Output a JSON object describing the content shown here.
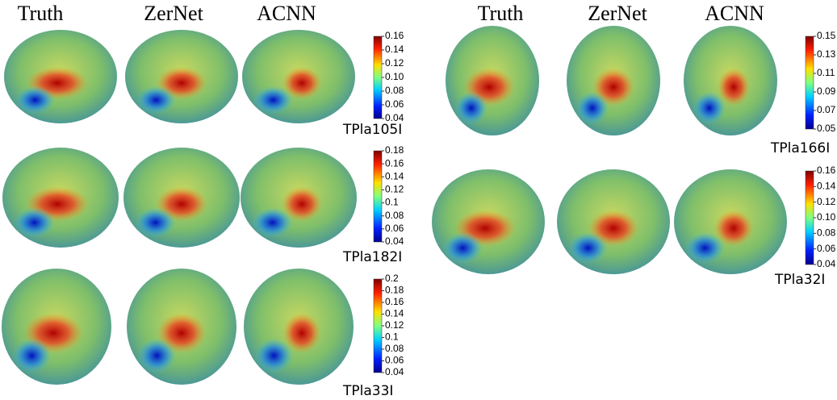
{
  "headers": {
    "left": [
      "Truth",
      "ZerNet",
      "ACNN"
    ],
    "right": [
      "Truth",
      "ZerNet",
      "ACNN"
    ]
  },
  "panels": [
    {
      "label": "TPla105I",
      "ticks": [
        "0.16",
        "0.14",
        "0.12",
        "0.10",
        "0.08",
        "0.06",
        "0.04"
      ]
    },
    {
      "label": "TPla182I",
      "ticks": [
        "0.18",
        "0.16",
        "0.14",
        "0.12",
        "0.1",
        "0.08",
        "0.06",
        "0.04"
      ]
    },
    {
      "label": "TPla33I",
      "ticks": [
        "0.2",
        "0.18",
        "0.16",
        "0.14",
        "0.12",
        "0.1",
        "0.08",
        "0.06",
        "0.04"
      ]
    },
    {
      "label": "TPla166I",
      "ticks": [
        "0.15",
        "0.13",
        "0.11",
        "0.09",
        "0.07",
        "0.05"
      ]
    },
    {
      "label": "TPla32I",
      "ticks": [
        "0.16",
        "0.14",
        "0.12",
        "0.10",
        "0.08",
        "0.06",
        "0.04"
      ]
    }
  ]
}
